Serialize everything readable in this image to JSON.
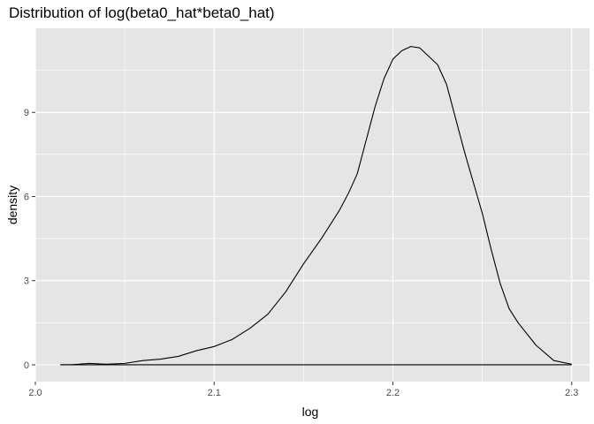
{
  "chart_data": {
    "type": "area",
    "title": "Distribution of log(beta0_hat*beta0_hat)",
    "xlabel": "log",
    "ylabel": "density",
    "xlim": [
      2.0,
      2.31
    ],
    "ylim": [
      -0.6,
      12.0
    ],
    "x_ticks": [
      2.0,
      2.1,
      2.2,
      2.3
    ],
    "x_tick_labels": [
      "2.0",
      "2.1",
      "2.2",
      "2.3"
    ],
    "y_ticks": [
      0,
      3,
      6,
      9
    ],
    "y_tick_labels": [
      "0",
      "3",
      "6",
      "9"
    ],
    "grid": true,
    "colors": {
      "panel": "#e5e5e5",
      "grid": "#ffffff",
      "line": "#000000"
    },
    "series": [
      {
        "x": [
          2.014,
          2.02,
          2.03,
          2.04,
          2.05,
          2.06,
          2.07,
          2.08,
          2.09,
          2.1,
          2.11,
          2.12,
          2.13,
          2.14,
          2.15,
          2.16,
          2.17,
          2.175,
          2.18,
          2.185,
          2.19,
          2.195,
          2.2,
          2.205,
          2.21,
          2.215,
          2.22,
          2.225,
          2.23,
          2.235,
          2.24,
          2.245,
          2.25,
          2.255,
          2.26,
          2.265,
          2.27,
          2.28,
          2.29,
          2.3
        ],
        "y": [
          0.0,
          0.0,
          0.05,
          0.02,
          0.05,
          0.15,
          0.2,
          0.3,
          0.5,
          0.65,
          0.9,
          1.3,
          1.8,
          2.6,
          3.6,
          4.5,
          5.5,
          6.1,
          6.8,
          8.0,
          9.2,
          10.2,
          10.9,
          11.2,
          11.35,
          11.3,
          11.0,
          10.7,
          10.0,
          8.8,
          7.6,
          6.5,
          5.4,
          4.1,
          2.9,
          2.0,
          1.5,
          0.7,
          0.15,
          0.02
        ]
      }
    ]
  }
}
